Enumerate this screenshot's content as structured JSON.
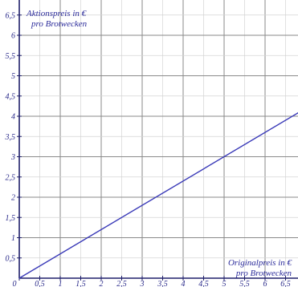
{
  "chart_data": {
    "type": "line",
    "title": "",
    "xlabel_line1": "Originalpreis in €",
    "xlabel_line2": "pro Brotwecken",
    "ylabel_line1": "Aktionspreis in €",
    "ylabel_line2": "pro Brotwecken",
    "xlim": [
      0,
      7
    ],
    "ylim": [
      0,
      7
    ],
    "grid": "major lines every 1, light lines every 0.5",
    "x_ticks": [
      "0",
      "0,5",
      "1",
      "1,5",
      "2",
      "2,5",
      "3",
      "3,5",
      "4",
      "4,5",
      "5",
      "5,5",
      "6",
      "6,5"
    ],
    "x_tick_values": [
      0,
      0.5,
      1,
      1.5,
      2,
      2.5,
      3,
      3.5,
      4,
      4.5,
      5,
      5.5,
      6,
      6.5
    ],
    "y_ticks": [
      "0,5",
      "1",
      "1,5",
      "2",
      "2,5",
      "3",
      "3,5",
      "4",
      "4,5",
      "5",
      "5,5",
      "6",
      "6,5"
    ],
    "y_tick_values": [
      0.5,
      1,
      1.5,
      2,
      2.5,
      3,
      3.5,
      4,
      4.5,
      5,
      5.5,
      6,
      6.5
    ],
    "series": [
      {
        "x": [
          0,
          6.9
        ],
        "y": [
          0,
          4.14
        ]
      }
    ],
    "colors": {
      "line": "#3a3ab8",
      "axis": "#1f1f6a",
      "grid_major": "#8a8a8a",
      "grid_minor": "#d4d4d4"
    }
  }
}
